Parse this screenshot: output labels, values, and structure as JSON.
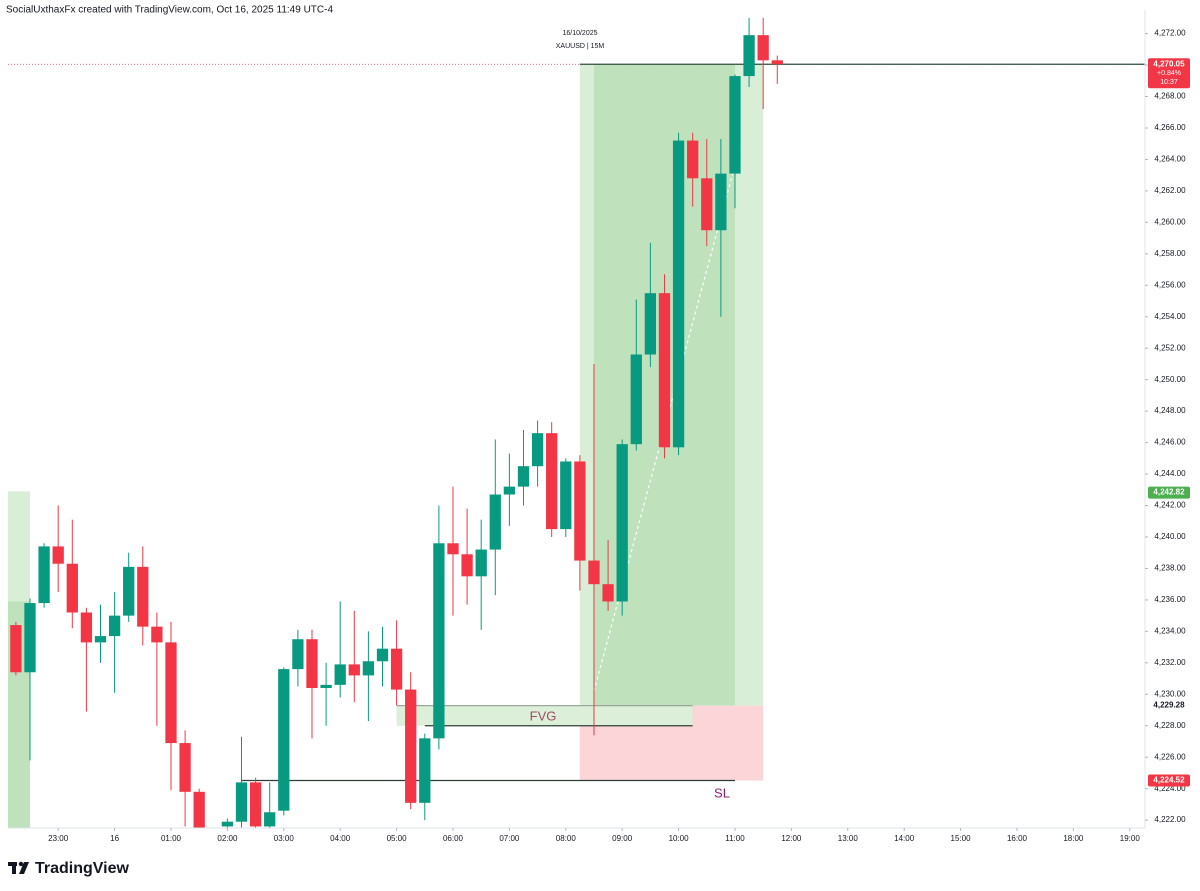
{
  "header": "SocialUxthaxFx created with TradingView.com, Oct 16, 2025 11:49 UTC-4",
  "footer": "TradingView",
  "chart_data": {
    "type": "candlestick",
    "date": "16/10/2025",
    "symbol": "XAUUSD | 15M",
    "up_color": "#089981",
    "down_color": "#f23645",
    "x": [
      22.25,
      22.5,
      22.75,
      23,
      23.25,
      23.5,
      23.75,
      24,
      24.25,
      24.5,
      24.75,
      25,
      25.25,
      25.5,
      26,
      26.25,
      26.5,
      26.75,
      27,
      27.25,
      27.5,
      27.75,
      28,
      28.25,
      28.5,
      28.75,
      29,
      29.25,
      29.5,
      29.75,
      30,
      30.25,
      30.5,
      30.75,
      31,
      31.25,
      31.5,
      31.75,
      32,
      32.25,
      32.5,
      32.75,
      33,
      33.25,
      33.5,
      33.75,
      34,
      34.25,
      34.5,
      34.75,
      35,
      35.25,
      35.5,
      35.75
    ],
    "open": [
      4234.4,
      4231.4,
      4235.8,
      4239.4,
      4238.3,
      4235.2,
      4233.3,
      4233.7,
      4235.0,
      4238.1,
      4234.3,
      4233.3,
      4226.9,
      4223.8,
      4221.6,
      4221.9,
      4224.4,
      4221.6,
      4222.6,
      4231.6,
      4233.5,
      4230.4,
      4230.6,
      4231.9,
      4231.2,
      4232.1,
      4232.9,
      4230.3,
      4223.1,
      4227.2,
      4239.6,
      4238.9,
      4237.5,
      4239.2,
      4242.7,
      4243.2,
      4244.5,
      4246.6,
      4240.5,
      4244.8,
      4238.5,
      4237.0,
      4235.9,
      4245.9,
      4251.6,
      4255.5,
      4245.7,
      4265.2,
      4262.8,
      4259.5,
      4263.1,
      4269.3,
      4271.9,
      4270.3
    ],
    "high": [
      4234.6,
      4236.1,
      4239.6,
      4242.0,
      4241.1,
      4235.5,
      4235.7,
      4236.5,
      4239.0,
      4239.4,
      4235.2,
      4234.6,
      4227.7,
      4224.0,
      4222.1,
      4227.3,
      4224.7,
      4224.4,
      4231.7,
      4234.1,
      4234.1,
      4232.0,
      4235.9,
      4235.3,
      4234.0,
      4234.3,
      4234.7,
      4231.4,
      4227.5,
      4242.0,
      4243.2,
      4241.8,
      4241.1,
      4246.2,
      4245.3,
      4246.8,
      4247.4,
      4247.3,
      4245.0,
      4245.2,
      4251.0,
      4239.8,
      4246.2,
      4255.1,
      4258.7,
      4256.7,
      4265.7,
      4265.7,
      4265.3,
      4265.3,
      4269.4,
      4273.0,
      4273.0,
      4270.6
    ],
    "low": [
      4231.2,
      4225.8,
      4235.5,
      4236.5,
      4234.2,
      4228.9,
      4232.0,
      4230.1,
      4234.6,
      4233.1,
      4228.0,
      4223.9,
      4221.6,
      4221.2,
      4221.3,
      4221.5,
      4221.3,
      4221.3,
      4222.3,
      4230.5,
      4227.2,
      4228.0,
      4229.8,
      4229.5,
      4228.3,
      4230.5,
      4229.3,
      4222.7,
      4222.0,
      4226.5,
      4235.0,
      4235.7,
      4234.1,
      4236.3,
      4240.7,
      4242.0,
      4243.2,
      4240.0,
      4240.0,
      4236.6,
      4227.4,
      4235.3,
      4235.0,
      4245.5,
      4250.8,
      4245.0,
      4245.2,
      4261.0,
      4258.5,
      4254.0,
      4260.9,
      4268.6,
      4267.2,
      4268.8
    ],
    "close": [
      4231.4,
      4235.8,
      4239.4,
      4238.3,
      4235.2,
      4233.3,
      4233.7,
      4235.0,
      4238.1,
      4234.3,
      4233.3,
      4226.9,
      4223.8,
      4221.5,
      4221.9,
      4224.4,
      4221.6,
      4222.5,
      4231.6,
      4233.5,
      4230.4,
      4230.6,
      4231.9,
      4231.2,
      4232.1,
      4232.9,
      4230.3,
      4223.1,
      4227.2,
      4239.6,
      4238.9,
      4237.5,
      4239.2,
      4242.7,
      4243.2,
      4244.5,
      4246.6,
      4240.5,
      4244.8,
      4238.5,
      4237.0,
      4235.9,
      4245.9,
      4251.6,
      4255.5,
      4245.7,
      4265.2,
      4262.8,
      4259.5,
      4263.1,
      4269.3,
      4271.9,
      4270.3,
      4270.05
    ],
    "xlim": [
      22.11,
      42.27
    ],
    "xticks": [
      {
        "value": 23,
        "label": "23:00"
      },
      {
        "value": 24,
        "label": "16"
      },
      {
        "value": 25,
        "label": "01:00"
      },
      {
        "value": 26,
        "label": "02:00"
      },
      {
        "value": 27,
        "label": "03:00"
      },
      {
        "value": 28,
        "label": "04:00"
      },
      {
        "value": 29,
        "label": "05:00"
      },
      {
        "value": 30,
        "label": "06:00"
      },
      {
        "value": 31,
        "label": "07:00"
      },
      {
        "value": 32,
        "label": "08:00"
      },
      {
        "value": 33,
        "label": "09:00"
      },
      {
        "value": 34,
        "label": "10:00"
      },
      {
        "value": 35,
        "label": "11:00"
      },
      {
        "value": 36,
        "label": "12:00"
      },
      {
        "value": 37,
        "label": "13:00"
      },
      {
        "value": 38,
        "label": "14:00"
      },
      {
        "value": 39,
        "label": "15:00"
      },
      {
        "value": 40,
        "label": "16:00"
      },
      {
        "value": 41,
        "label": "18:00"
      },
      {
        "value": 42,
        "label": "19:00"
      }
    ],
    "ylim": [
      4221.5,
      4273.5
    ],
    "yticks": [
      {
        "value": 4222,
        "label": "4,222.00"
      },
      {
        "value": 4224,
        "label": "4,224.00"
      },
      {
        "value": 4226,
        "label": "4,226.00"
      },
      {
        "value": 4228,
        "label": "4,228.00"
      },
      {
        "value": 4230,
        "label": "4,230.00"
      },
      {
        "value": 4232,
        "label": "4,232.00"
      },
      {
        "value": 4234,
        "label": "4,234.00"
      },
      {
        "value": 4236,
        "label": "4,236.00"
      },
      {
        "value": 4238,
        "label": "4,238.00"
      },
      {
        "value": 4240,
        "label": "4,240.00"
      },
      {
        "value": 4242,
        "label": "4,242.00"
      },
      {
        "value": 4244,
        "label": "4,244.00"
      },
      {
        "value": 4246,
        "label": "4,246.00"
      },
      {
        "value": 4248,
        "label": "4,248.00"
      },
      {
        "value": 4250,
        "label": "4,250.00"
      },
      {
        "value": 4252,
        "label": "4,252.00"
      },
      {
        "value": 4254,
        "label": "4,254.00"
      },
      {
        "value": 4256,
        "label": "4,256.00"
      },
      {
        "value": 4258,
        "label": "4,258.00"
      },
      {
        "value": 4260,
        "label": "4,260.00"
      },
      {
        "value": 4262,
        "label": "4,262.00"
      },
      {
        "value": 4264,
        "label": "4,264.00"
      },
      {
        "value": 4266,
        "label": "4,266.00"
      },
      {
        "value": 4268,
        "label": "4,268.00"
      },
      {
        "value": 4270,
        "label": "4,270.00"
      },
      {
        "value": 4272,
        "label": "4,272.00"
      }
    ],
    "zones": [
      {
        "x": [
          32.25,
          35.5
        ],
        "y": [
          4229.28,
          4270.05
        ],
        "color": "#d8eed6"
      },
      {
        "x": [
          32.5,
          35.0
        ],
        "y": [
          4229.28,
          4270.05
        ],
        "color": "#bfe2bd"
      },
      {
        "x": [
          32.25,
          35.5
        ],
        "y": [
          4224.52,
          4229.28
        ],
        "color": "#fbd5d8"
      },
      {
        "x": [
          22.11,
          22.5
        ],
        "y": [
          4221.5,
          4242.9
        ],
        "color": "#d8eed6"
      },
      {
        "x": [
          22.11,
          22.5
        ],
        "y": [
          4221.5,
          4235.9
        ],
        "color": "#bfe2bd"
      },
      {
        "x": [
          29.0,
          34.25
        ],
        "y": [
          4228.0,
          4229.28
        ],
        "color": "#dcefd9"
      }
    ],
    "lines": [
      {
        "x": [
          32.25,
          42.27
        ],
        "y": [
          4270.05,
          4270.05
        ],
        "color": "#2f4f3f",
        "dash": false
      },
      {
        "x": [
          29.0,
          34.25
        ],
        "y": [
          4229.28,
          4229.28
        ],
        "color": "#9aa89c",
        "dash": false
      },
      {
        "x": [
          29.5,
          34.25
        ],
        "y": [
          4228.0,
          4228.0
        ],
        "color": "#2f3f35",
        "dash": false
      },
      {
        "x": [
          26.25,
          35.0
        ],
        "y": [
          4224.52,
          4224.52
        ],
        "color": "#2f3f35",
        "dash": false
      },
      {
        "x": [
          32.5,
          35.1
        ],
        "y": [
          4230.2,
          4265.0
        ],
        "color": "#ffffff",
        "dash": true
      }
    ],
    "annotations": [
      "FVG",
      "SL"
    ],
    "annotation_colors": [
      "#9b4d66",
      "#8e1b6e"
    ],
    "price_labels": [
      {
        "value": 4270.05,
        "label": "4,270.05",
        "change": "+0.84%",
        "countdown": "10:37",
        "color": "#f23645"
      },
      {
        "value": 4242.82,
        "label": "4,242.82",
        "color": "#4caf50"
      },
      {
        "value": 4229.28,
        "label": "4,229.28"
      },
      {
        "value": 4224.52,
        "label": "4,224.52",
        "color": "#f23645"
      }
    ]
  }
}
